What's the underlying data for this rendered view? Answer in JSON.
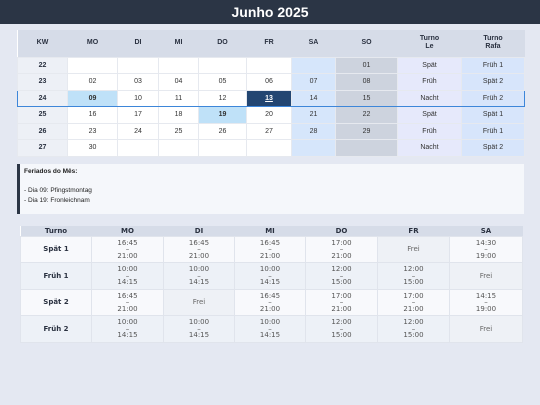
{
  "title": "Junho 2025",
  "calendar": {
    "headers": [
      "KW",
      "MO",
      "DI",
      "MI",
      "DO",
      "FR",
      "SA",
      "SO",
      "Turno\nLe",
      "Turno\nRafa"
    ],
    "weeks": [
      {
        "kw": "22",
        "days": [
          "",
          "",
          "",
          "",
          "",
          "",
          "01"
        ],
        "turno_le": "Spät",
        "turno_rafa": "Früh 1"
      },
      {
        "kw": "23",
        "days": [
          "02",
          "03",
          "04",
          "05",
          "06",
          "07",
          "08"
        ],
        "turno_le": "Früh",
        "turno_rafa": "Spät 2"
      },
      {
        "kw": "24",
        "days": [
          "09",
          "10",
          "11",
          "12",
          "13",
          "14",
          "15"
        ],
        "turno_le": "Nacht",
        "turno_rafa": "Früh 2"
      },
      {
        "kw": "25",
        "days": [
          "16",
          "17",
          "18",
          "19",
          "20",
          "21",
          "22"
        ],
        "turno_le": "Spät",
        "turno_rafa": "Spät 1"
      },
      {
        "kw": "26",
        "days": [
          "23",
          "24",
          "25",
          "26",
          "27",
          "28",
          "29"
        ],
        "turno_le": "Früh",
        "turno_rafa": "Früh 1"
      },
      {
        "kw": "27",
        "days": [
          "30",
          "",
          "",
          "",
          "",
          "",
          ""
        ],
        "turno_le": "Nacht",
        "turno_rafa": "Spät 2"
      }
    ]
  },
  "holidays": {
    "title": "Feriados do Mês:",
    "items": [
      "- Dia 09: Pfingstmontag",
      "- Dia 19: Fronleichnam"
    ]
  },
  "shifts": {
    "headers": [
      "Turno",
      "MO",
      "DI",
      "MI",
      "DO",
      "FR",
      "SA"
    ],
    "rows": [
      {
        "name": "Spät 1",
        "cells": [
          [
            "16:45",
            "–",
            "21:00"
          ],
          [
            "16:45",
            "–",
            "21:00"
          ],
          [
            "16:45",
            "–",
            "21:00"
          ],
          [
            "17:00",
            "–",
            "21:00"
          ],
          [
            "Frei"
          ],
          [
            "14:30",
            "–",
            "19:00"
          ]
        ]
      },
      {
        "name": "Früh 1",
        "cells": [
          [
            "10:00",
            "–",
            "14:15"
          ],
          [
            "10:00",
            "–",
            "14:15"
          ],
          [
            "10:00",
            "–",
            "14:15"
          ],
          [
            "12:00",
            "–",
            "15:00"
          ],
          [
            "12:00",
            "–",
            "15:00"
          ],
          [
            "Frei"
          ]
        ]
      },
      {
        "name": "Spät 2",
        "cells": [
          [
            "16:45",
            "–",
            "21:00"
          ],
          [
            "Frei"
          ],
          [
            "16:45",
            "–",
            "21:00"
          ],
          [
            "17:00",
            "–",
            "21:00"
          ],
          [
            "17:00",
            "–",
            "21:00"
          ],
          [
            "14:15",
            "–",
            "19:00"
          ]
        ]
      },
      {
        "name": "Früh 2",
        "cells": [
          [
            "10:00",
            "–",
            "14:15"
          ],
          [
            "10:00",
            "–",
            "14:15"
          ],
          [
            "10:00",
            "–",
            "14:15"
          ],
          [
            "12:00",
            "–",
            "15:00"
          ],
          [
            "12:00",
            "–",
            "15:00"
          ],
          [
            "Frei"
          ]
        ]
      }
    ]
  }
}
